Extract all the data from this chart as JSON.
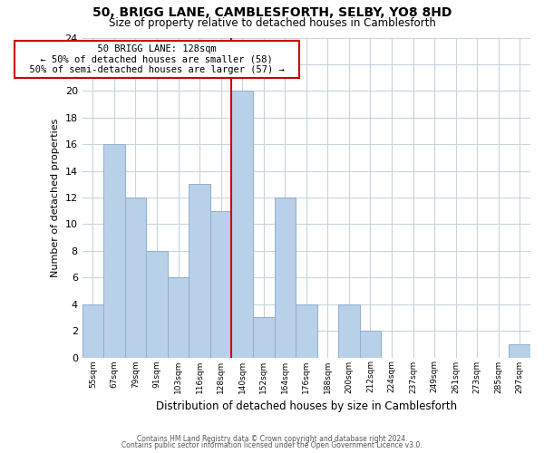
{
  "title": "50, BRIGG LANE, CAMBLESFORTH, SELBY, YO8 8HD",
  "subtitle": "Size of property relative to detached houses in Camblesforth",
  "xlabel": "Distribution of detached houses by size in Camblesforth",
  "ylabel": "Number of detached properties",
  "bin_labels": [
    "55sqm",
    "67sqm",
    "79sqm",
    "91sqm",
    "103sqm",
    "116sqm",
    "128sqm",
    "140sqm",
    "152sqm",
    "164sqm",
    "176sqm",
    "188sqm",
    "200sqm",
    "212sqm",
    "224sqm",
    "237sqm",
    "249sqm",
    "261sqm",
    "273sqm",
    "285sqm",
    "297sqm"
  ],
  "bin_values": [
    4,
    16,
    12,
    8,
    6,
    13,
    11,
    20,
    3,
    12,
    4,
    0,
    4,
    2,
    0,
    0,
    0,
    0,
    0,
    0,
    1
  ],
  "bar_color": "#b8d0e8",
  "bar_edge_color": "#90b0cc",
  "property_line_idx": 7,
  "annotation_title": "50 BRIGG LANE: 128sqm",
  "annotation_line1": "← 50% of detached houses are smaller (58)",
  "annotation_line2": "50% of semi-detached houses are larger (57) →",
  "annotation_box_color": "#ffffff",
  "annotation_box_edge_color": "#cc0000",
  "line_color": "#cc0000",
  "ylim": [
    0,
    24
  ],
  "footer1": "Contains HM Land Registry data © Crown copyright and database right 2024.",
  "footer2": "Contains public sector information licensed under the Open Government Licence v3.0.",
  "background_color": "#ffffff",
  "grid_color": "#c8d4e0"
}
